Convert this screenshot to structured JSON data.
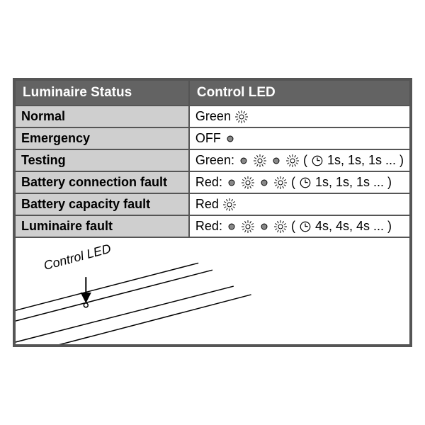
{
  "headers": {
    "status": "Luminaire Status",
    "led": "Control LED"
  },
  "rows": [
    {
      "status": "Normal",
      "color": "Green",
      "pattern": "on",
      "timing": null
    },
    {
      "status": "Emergency",
      "color": "OFF",
      "pattern": "off",
      "timing": null
    },
    {
      "status": "Testing",
      "color": "Green",
      "pattern": "blink",
      "timing": "1s, 1s, 1s ..."
    },
    {
      "status": "Battery connection fault",
      "color": "Red",
      "pattern": "blink",
      "timing": "1s, 1s, 1s ..."
    },
    {
      "status": "Battery capacity fault",
      "color": "Red",
      "pattern": "on",
      "timing": null
    },
    {
      "status": "Luminaire fault",
      "color": "Red",
      "pattern": "blink",
      "timing": "4s, 4s, 4s ..."
    }
  ],
  "diagram_label": "Control LED",
  "colors": {
    "header_bg": "#636363",
    "header_text": "#ffffff",
    "status_bg": "#cfcfcf",
    "led_bg": "#ffffff",
    "border": "#555555",
    "icon": "#000000"
  }
}
